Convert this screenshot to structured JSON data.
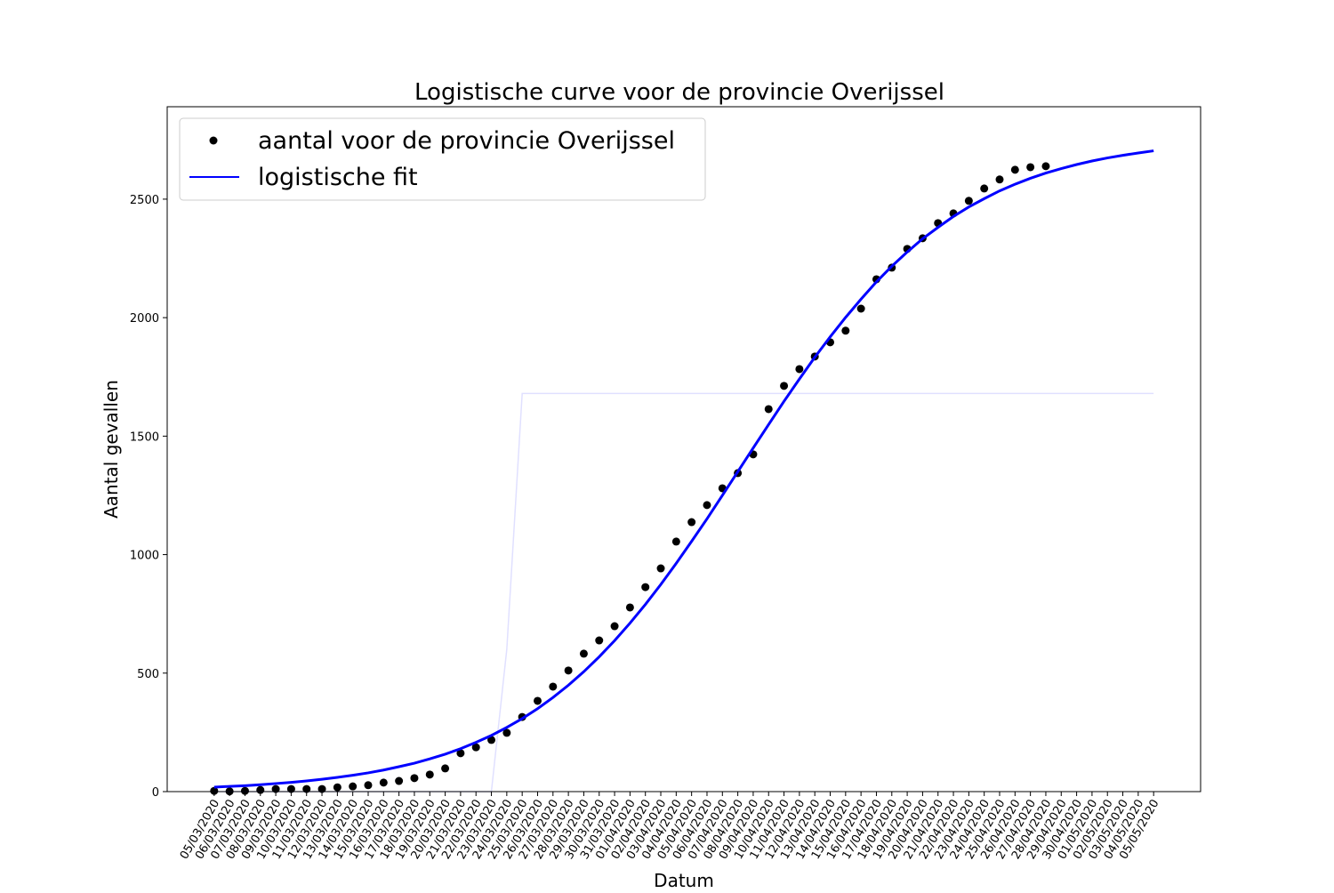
{
  "chart_data": {
    "type": "line",
    "title": "Logistische curve voor de provincie Overijssel",
    "x_label": "Datum",
    "y_label": "Aantal gevallen",
    "categories": [
      "05/03/2020",
      "06/03/2020",
      "07/03/2020",
      "08/03/2020",
      "09/03/2020",
      "10/03/2020",
      "11/03/2020",
      "12/03/2020",
      "13/03/2020",
      "14/03/2020",
      "15/03/2020",
      "16/03/2020",
      "17/03/2020",
      "18/03/2020",
      "19/03/2020",
      "20/03/2020",
      "21/03/2020",
      "22/03/2020",
      "23/03/2020",
      "24/03/2020",
      "25/03/2020",
      "26/03/2020",
      "27/03/2020",
      "28/03/2020",
      "29/03/2020",
      "30/03/2020",
      "31/03/2020",
      "01/04/2020",
      "02/04/2020",
      "03/04/2020",
      "04/04/2020",
      "05/04/2020",
      "06/04/2020",
      "07/04/2020",
      "08/04/2020",
      "09/04/2020",
      "10/04/2020",
      "11/04/2020",
      "12/04/2020",
      "13/04/2020",
      "14/04/2020",
      "15/04/2020",
      "16/04/2020",
      "17/04/2020",
      "18/04/2020",
      "19/04/2020",
      "20/04/2020",
      "21/04/2020",
      "22/04/2020",
      "23/04/2020",
      "24/04/2020",
      "25/04/2020",
      "26/04/2020",
      "27/04/2020",
      "28/04/2020",
      "29/04/2020",
      "30/04/2020",
      "01/05/2020",
      "02/05/2020",
      "03/05/2020",
      "04/05/2020",
      "05/05/2020"
    ],
    "series": [
      {
        "name": "aantal voor de provincie Overijssel",
        "color": "#000000",
        "style": "markers",
        "values": [
          3,
          1,
          3,
          7,
          11,
          11,
          11,
          11,
          18,
          22,
          27,
          38,
          45,
          57,
          72,
          98,
          162,
          187,
          218,
          248,
          315,
          383,
          443,
          511,
          582,
          638,
          698,
          777,
          863,
          942,
          1055,
          1137,
          1209,
          1280,
          1344,
          1423,
          1614,
          1712,
          1783,
          1836,
          1896,
          1945,
          2038,
          2162,
          2211,
          2290,
          2335,
          2399,
          2440,
          2493,
          2545,
          2583,
          2624,
          2635,
          2639,
          null,
          null,
          null,
          null,
          null,
          null,
          null
        ]
      },
      {
        "name": "logistische fit",
        "color": "#0000ff",
        "style": "line",
        "values": [
          19,
          22,
          25,
          29,
          34,
          39,
          45,
          52,
          60,
          69,
          79,
          91,
          105,
          120,
          138,
          158,
          181,
          208,
          237,
          271,
          308,
          350,
          397,
          449,
          506,
          569,
          637,
          711,
          790,
          874,
          963,
          1056,
          1151,
          1250,
          1350,
          1450,
          1549,
          1647,
          1741,
          1833,
          1919,
          2001,
          2078,
          2151,
          2217,
          2277,
          2333,
          2381,
          2427,
          2467,
          2502,
          2535,
          2563,
          2588,
          2610,
          2629,
          2646,
          2661,
          2674,
          2685,
          2695,
          2704
        ]
      },
      {
        "color": "#0000ff",
        "style": "faint",
        "values": [
          0,
          0,
          0,
          0,
          0,
          0,
          0,
          0,
          0,
          0,
          0,
          0,
          0,
          0,
          0,
          0,
          0,
          0,
          0,
          600,
          1680,
          1680,
          1680,
          1680,
          1680,
          1680,
          1680,
          1680,
          1680,
          1680,
          1680,
          1680,
          1680,
          1680,
          1680,
          1680,
          1680,
          1680,
          1680,
          1680,
          1680,
          1680,
          1680,
          1680,
          1680,
          1680,
          1680,
          1680,
          1680,
          1680,
          1680,
          1680,
          1680,
          1680,
          1680,
          1680,
          1680,
          1680,
          1680,
          1680,
          1680,
          1680
        ]
      }
    ],
    "ylim": [
      0,
      2890
    ],
    "yticks": [
      0,
      500,
      1000,
      1500,
      2000,
      2500
    ],
    "legend": "upper left"
  }
}
